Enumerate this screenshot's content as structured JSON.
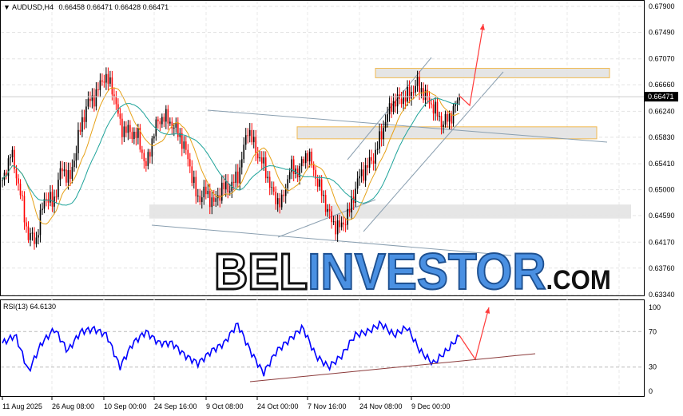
{
  "header": {
    "symbol": "AUDUSD,H4",
    "values": "0.66458 0.66471 0.66428 0.66471"
  },
  "rsi_label": "RSI(13) 64.6130",
  "logo": "BELINVESTOR.COM",
  "colors": {
    "bull": "#000000",
    "bear": "#ff0000",
    "ma_fast": "#e6a117",
    "ma_slow": "#1ea39a",
    "rsi": "#0000ff",
    "band_fill": "#e3e3e3",
    "band_border": "#f0b23c",
    "arrow": "#ff3b3b",
    "trendline": "#8a9fb0",
    "rsi_trend": "#8b3a3a",
    "logo_blue": "#4a90e2"
  },
  "chart_data": [
    {
      "type": "candlestick",
      "title": "AUDUSD,H4",
      "ylim": [
        0.6334,
        0.679
      ],
      "last_price": "0.66471",
      "y_ticks": [
        "0.67900",
        "0.67490",
        "0.67070",
        "0.66660",
        "0.66240",
        "0.65830",
        "0.65410",
        "0.65000",
        "0.64590",
        "0.64170",
        "0.63760",
        "0.63340"
      ],
      "x_ticks": [
        "11 Aug 2025",
        "26 Aug 08:00",
        "10 Sep 00:00",
        "24 Sep 16:00",
        "9 Oct 08:00",
        "24 Oct 00:00",
        "7 Nov 16:00",
        "24 Nov 08:00",
        "9 Dec 00:00"
      ],
      "close_path": [
        0.65096,
        0.65601,
        0.65033,
        0.64275,
        0.64212,
        0.64907,
        0.6478,
        0.65349,
        0.65159,
        0.65854,
        0.66359,
        0.66485,
        0.66801,
        0.66612,
        0.6598,
        0.65917,
        0.65854,
        0.65349,
        0.6598,
        0.6617,
        0.66043,
        0.65854,
        0.65475,
        0.64844,
        0.6497,
        0.6478,
        0.65033,
        0.65033,
        0.65286,
        0.6598,
        0.65601,
        0.65349,
        0.64907,
        0.6478,
        0.65349,
        0.65286,
        0.65601,
        0.65222,
        0.64844,
        0.64465,
        0.64402,
        0.64654,
        0.65159,
        0.65349,
        0.65538,
        0.6598,
        0.66359,
        0.66422,
        0.66485,
        0.66675,
        0.66485,
        0.66296,
        0.66043,
        0.6617,
        0.66471
      ],
      "zones": [
        [
          0.66771,
          0.66921
        ],
        [
          0.65805,
          0.65995
        ],
        [
          0.64544,
          0.64765
        ]
      ],
      "grid": true
    },
    {
      "type": "line",
      "title": "RSI(13) 64.6130",
      "ylim": [
        0,
        100
      ],
      "y_ticks": [
        "100",
        "70",
        "30",
        "0"
      ],
      "values": [
        57,
        66,
        25,
        57,
        73,
        48,
        70,
        73,
        66,
        30,
        57,
        70,
        57,
        57,
        43,
        34,
        48,
        57,
        79,
        48,
        23,
        48,
        61,
        75,
        43,
        30,
        43,
        66,
        70,
        79,
        66,
        75,
        48,
        34,
        48,
        64.6
      ]
    }
  ]
}
